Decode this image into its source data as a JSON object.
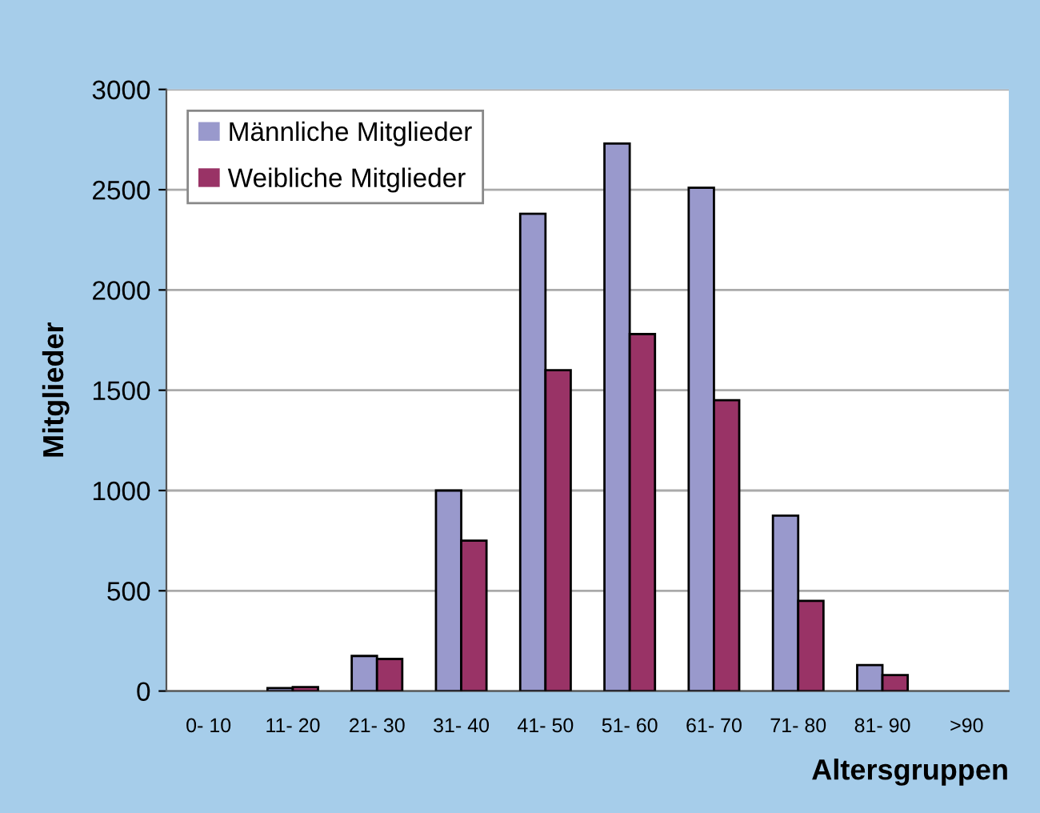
{
  "chart_data": {
    "type": "bar",
    "xlabel": "Altersgruppen",
    "ylabel": "Mitglieder",
    "categories": [
      "0- 10",
      "11- 20",
      "21- 30",
      "31- 40",
      "41- 50",
      "51- 60",
      "61- 70",
      "71- 80",
      "81- 90",
      ">90"
    ],
    "series": [
      {
        "name": "Männliche Mitglieder",
        "color": "#9999cc",
        "values": [
          0,
          15,
          175,
          1000,
          2380,
          2730,
          2510,
          875,
          130,
          0
        ]
      },
      {
        "name": "Weibliche Mitglieder",
        "color": "#993366",
        "values": [
          0,
          20,
          160,
          750,
          1600,
          1780,
          1450,
          450,
          80,
          0
        ]
      }
    ],
    "ylim": [
      0,
      3000
    ],
    "yticks": [
      0,
      500,
      1000,
      1500,
      2000,
      2500,
      3000
    ],
    "grid": "y",
    "legend": "top left"
  }
}
